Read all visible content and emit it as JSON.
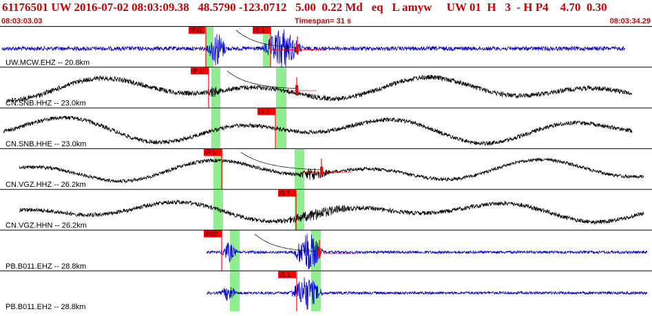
{
  "header": {
    "title": "61176501 UW 2016-07-02 08:03:09.38   48.5790 -123.0712   5.00  0.22 Md   eq   L amyw     UW 01  H   3  - H P4    4.70  0.30",
    "start_time": "08:03:03.03",
    "end_time": "08:03:34.29",
    "timespan": "Timespan=  31 s"
  },
  "colors": {
    "blue_trace": "#0000cc",
    "black_trace": "#000000",
    "pick_red": "#ff0000",
    "window_green": "#90ee90",
    "header_red": "#cc0000"
  },
  "panels": [
    {
      "label": "UW.MCW.EHZ -- 20.8km",
      "color": "blue",
      "picks": [
        {
          "label": "iPd1"
        },
        {
          "label": "iS 1"
        }
      ]
    },
    {
      "label": "CN.SNB.HHZ -- 23.0km",
      "color": "black",
      "picks": [
        {
          "label": "iP 1"
        }
      ]
    },
    {
      "label": "CN.SNB.HHE -- 23.0km",
      "color": "black",
      "picks": [
        {
          "label": "iS 1"
        }
      ]
    },
    {
      "label": "CN.VGZ.HHZ -- 26.2km",
      "color": "black",
      "picks": [
        {
          "label": "iP 1"
        }
      ]
    },
    {
      "label": "CN.VGZ.HHN -- 26.2km",
      "color": "black",
      "picks": [
        {
          "label": "iS 1"
        }
      ]
    },
    {
      "label": "PB.B011.EHZ -- 28.8km",
      "color": "blue",
      "picks": [
        {
          "label": "iPd0"
        }
      ]
    },
    {
      "label": "PB.B011.EH2 -- 28.8km",
      "color": "blue",
      "picks": [
        {
          "label": "iS 1"
        }
      ]
    }
  ]
}
